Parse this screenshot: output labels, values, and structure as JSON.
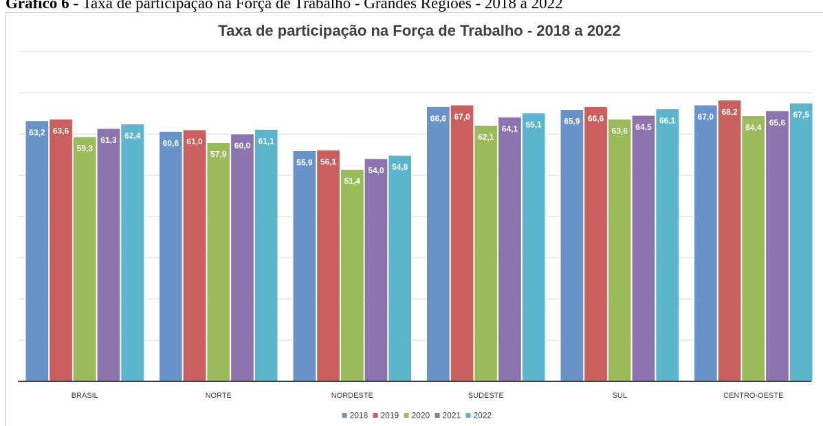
{
  "caption": {
    "label": "Gráfico 6",
    "text": "- Taxa de participação na Força de Trabalho - Grandes Regiões - 2018 a 2022"
  },
  "chart_data": {
    "type": "bar",
    "title": "Taxa de participação na Força de Trabalho - 2018 a 2022",
    "categories": [
      "BRASIL",
      "NORTE",
      "NORDESTE",
      "SUDESTE",
      "SUL",
      "CENTRO-OESTE"
    ],
    "series": [
      {
        "name": "2018",
        "color": "#6a93c9",
        "values": [
          63.2,
          60.6,
          55.9,
          66.6,
          65.9,
          67.0
        ],
        "value_labels": [
          "63,2",
          "60,6",
          "55,9",
          "66,6",
          "65,9",
          "67,0"
        ]
      },
      {
        "name": "2019",
        "color": "#c9605d",
        "values": [
          63.6,
          61.0,
          56.1,
          67.0,
          66.6,
          68.2
        ],
        "value_labels": [
          "63,6",
          "61,0",
          "56,1",
          "67,0",
          "66,6",
          "68,2"
        ]
      },
      {
        "name": "2020",
        "color": "#9cbb5b",
        "values": [
          59.3,
          57.9,
          51.4,
          62.1,
          63.6,
          64.4
        ],
        "value_labels": [
          "59,3",
          "57,9",
          "51,4",
          "62,1",
          "63,6",
          "64,4"
        ]
      },
      {
        "name": "2021",
        "color": "#8d74ae",
        "values": [
          61.3,
          60.0,
          54.0,
          64.1,
          64.5,
          65.6
        ],
        "value_labels": [
          "61,3",
          "60,0",
          "54,0",
          "64,1",
          "64,5",
          "65,6"
        ]
      },
      {
        "name": "2022",
        "color": "#5bb5cc",
        "values": [
          62.4,
          61.1,
          54.8,
          65.1,
          66.1,
          67.5
        ],
        "value_labels": [
          "62,4",
          "61,1",
          "54,8",
          "65,1",
          "66,1",
          "67,5"
        ]
      }
    ],
    "ylim": [
      0,
      80
    ],
    "yticks": [
      0,
      10,
      20,
      30,
      40,
      50,
      60,
      70,
      80
    ],
    "grid": true,
    "legend": "bottom"
  }
}
